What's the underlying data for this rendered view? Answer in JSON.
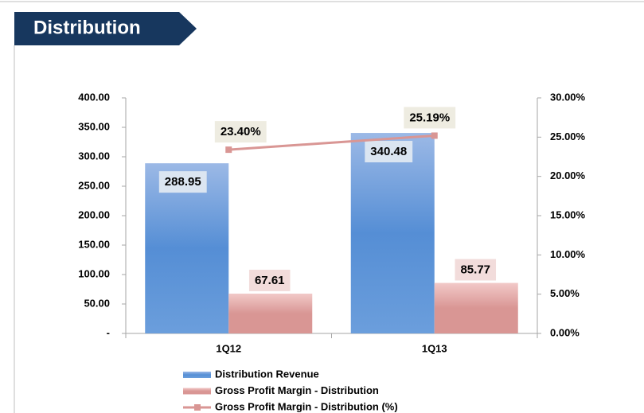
{
  "chart_data": {
    "type": "bar",
    "title": "Distribution",
    "categories": [
      "1Q12",
      "1Q13"
    ],
    "series": [
      {
        "name": "Distribution Revenue",
        "color": "#558ed5",
        "values": [
          288.95,
          340.48
        ]
      },
      {
        "name": "Gross Profit Margin - Distribution",
        "color": "#d99694",
        "values": [
          67.61,
          85.77
        ]
      },
      {
        "name": "Gross Profit Margin - Distribution (%)",
        "type": "line",
        "axis": "y2",
        "color": "#d99694",
        "values": [
          23.4,
          25.19
        ],
        "value_labels": [
          "23.40%",
          "25.19%"
        ]
      }
    ],
    "ylim": [
      0,
      400
    ],
    "yticks": [
      {
        "value": 0,
        "label": "-"
      },
      {
        "value": 50,
        "label": "50.00"
      },
      {
        "value": 100,
        "label": "100.00"
      },
      {
        "value": 150,
        "label": "150.00"
      },
      {
        "value": 200,
        "label": "200.00"
      },
      {
        "value": 250,
        "label": "250.00"
      },
      {
        "value": 300,
        "label": "300.00"
      },
      {
        "value": 350,
        "label": "350.00"
      },
      {
        "value": 400,
        "label": "400.00"
      }
    ],
    "y2lim": [
      0,
      30
    ],
    "y2ticks": [
      {
        "value": 0,
        "label": "0.00%"
      },
      {
        "value": 5,
        "label": "5.00%"
      },
      {
        "value": 10,
        "label": "10.00%"
      },
      {
        "value": 15,
        "label": "15.00%"
      },
      {
        "value": 20,
        "label": "20.00%"
      },
      {
        "value": 25,
        "label": "25.00%"
      },
      {
        "value": 30,
        "label": "30.00%"
      }
    ],
    "legend": "bottom"
  }
}
